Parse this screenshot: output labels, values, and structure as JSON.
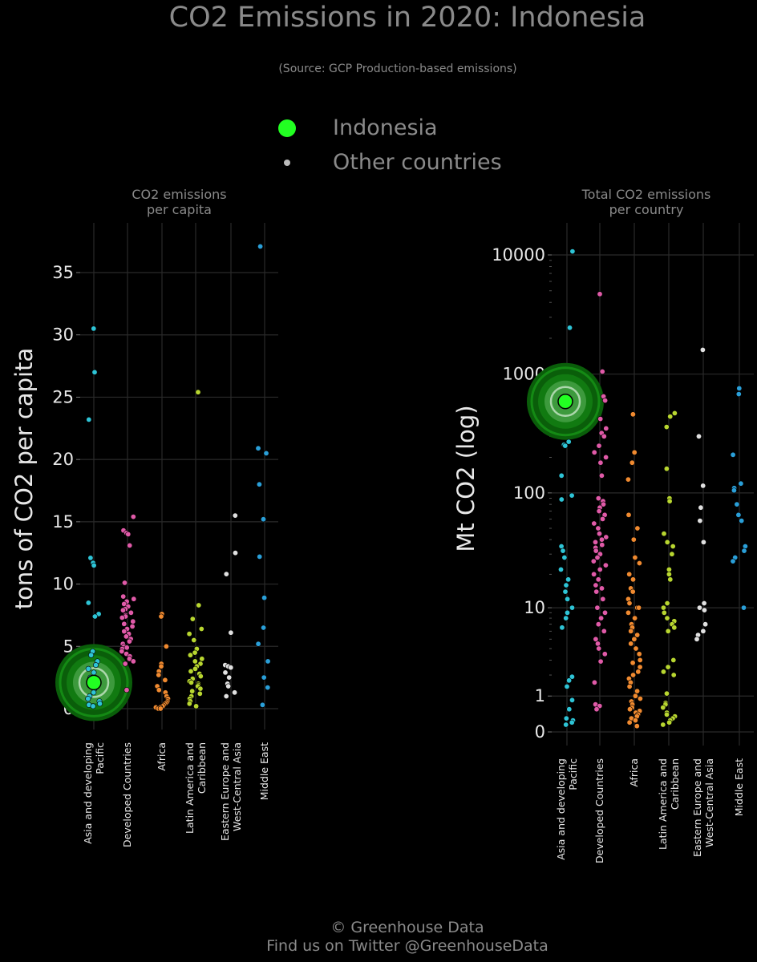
{
  "title": "CO2 Emissions in 2020: Indonesia",
  "subtitle": "(Source: GCP Production-based emissions)",
  "legend": {
    "highlight_label": "Indonesia",
    "others_label": "Other countries"
  },
  "footer": {
    "line1": "© Greenhouse Data",
    "line2": "Find us on Twitter @GreenhouseData"
  },
  "colors": {
    "background": "#000000",
    "highlight": "#22ff22",
    "Asia and developing Pacific": "#2ec4d6",
    "Developed Countries": "#e05aa8",
    "Africa": "#f08a30",
    "Latin America and Caribbean": "#b8d630",
    "Eastern Europe and West-Central Asia": "#e0e0e0",
    "Middle East": "#2a9fd8"
  },
  "chart_data": [
    {
      "type": "scatter",
      "title": "CO2 emissions\nper capita",
      "ylabel": "tons of CO2 per capita",
      "ylim": [
        -1.5,
        38.5
      ],
      "yticks": [
        0,
        5,
        10,
        15,
        20,
        25,
        30,
        35
      ],
      "ytick_labels": [
        "0",
        "5",
        "10",
        "15",
        "20",
        "25",
        "30",
        "35"
      ],
      "categories": [
        "Asia and developing\nPacific",
        "Developed Countries",
        "Africa",
        "Latin America and\nCaribbean",
        "Eastern Europe and\nWest-Central Asia",
        "Middle East"
      ],
      "highlight": {
        "name": "Indonesia",
        "category": 0,
        "value": 2.1
      },
      "series": [
        {
          "category": "Asia and developing Pacific",
          "values": [
            30.5,
            27.0,
            23.2,
            12.1,
            11.7,
            11.5,
            8.5,
            7.6,
            7.4,
            4.6,
            4.3,
            3.8,
            3.5,
            3.2,
            2.9,
            2.5,
            2.2,
            1.9,
            1.6,
            1.3,
            1.0,
            0.8,
            0.6,
            0.4,
            0.3,
            0.2
          ]
        },
        {
          "category": "Developed Countries",
          "values": [
            15.4,
            14.3,
            14.1,
            14.0,
            13.1,
            10.1,
            9.0,
            8.8,
            8.6,
            8.4,
            8.2,
            8.0,
            7.9,
            7.7,
            7.5,
            7.4,
            7.3,
            7.0,
            6.8,
            6.6,
            6.4,
            6.2,
            6.0,
            5.8,
            5.6,
            5.4,
            5.2,
            5.0,
            4.9,
            4.8,
            4.6,
            4.4,
            4.2,
            4.0,
            3.8,
            3.6,
            1.5
          ]
        },
        {
          "category": "Africa",
          "values": [
            7.6,
            7.4,
            5.0,
            3.6,
            3.4,
            3.0,
            2.7,
            2.3,
            1.8,
            1.5,
            1.3,
            1.0,
            0.8,
            0.6,
            0.5,
            0.4,
            0.3,
            0.2,
            0.1,
            0.1,
            0.1,
            0.0,
            0.0
          ]
        },
        {
          "category": "Latin America and Caribbean",
          "values": [
            25.4,
            8.3,
            7.2,
            6.4,
            6.0,
            5.5,
            4.8,
            4.5,
            4.3,
            4.0,
            3.8,
            3.6,
            3.4,
            3.2,
            3.0,
            2.8,
            2.6,
            2.4,
            2.2,
            2.1,
            2.0,
            1.9,
            1.8,
            1.6,
            1.4,
            1.2,
            1.0,
            0.8,
            0.6,
            0.4,
            0.2
          ]
        },
        {
          "category": "Eastern Europe and West-Central Asia",
          "values": [
            15.5,
            12.5,
            10.8,
            6.1,
            3.5,
            3.4,
            3.3,
            2.9,
            2.5,
            2.0,
            1.8,
            1.3,
            1.0
          ]
        },
        {
          "category": "Middle East",
          "values": [
            37.1,
            20.9,
            20.5,
            18.0,
            15.2,
            12.2,
            8.9,
            6.5,
            5.2,
            3.8,
            2.5,
            1.7,
            0.3
          ]
        }
      ]
    },
    {
      "type": "scatter",
      "title": "Total CO2 emissions\nper country",
      "ylabel": "Mt CO2 (log)",
      "yscale": "log",
      "ytick_values": [
        0,
        1,
        10,
        100,
        1000,
        10000
      ],
      "ytick_labels": [
        "0",
        "1",
        "10",
        "100",
        "1000",
        "10000"
      ],
      "categories": [
        "Asia and developing\nPacific",
        "Developed Countries",
        "Africa",
        "Latin America and\nCaribbean",
        "Eastern Europe and\nWest-Central Asia",
        "Middle East"
      ],
      "highlight": {
        "name": "Indonesia",
        "category": 0,
        "value": 590
      },
      "series": [
        {
          "category": "Asia and developing Pacific",
          "values": [
            10700,
            2450,
            270,
            255,
            250,
            140,
            95,
            88,
            35,
            32,
            28,
            22,
            18,
            16,
            14,
            12,
            10,
            9,
            8,
            6.5,
            1.9,
            1.7,
            1.4,
            0.85,
            0.55,
            0.3,
            0.25,
            0.2,
            0.15
          ]
        },
        {
          "category": "Developed Countries",
          "values": [
            4700,
            1050,
            650,
            600,
            420,
            350,
            320,
            300,
            250,
            220,
            200,
            180,
            140,
            90,
            85,
            80,
            75,
            70,
            65,
            60,
            55,
            50,
            45,
            42,
            40,
            38,
            36,
            34,
            32,
            30,
            28,
            26,
            24,
            22,
            20,
            18,
            16,
            15,
            14,
            12,
            10,
            9,
            8,
            7,
            6,
            5,
            4.5,
            4,
            3.5,
            2.9,
            1.6,
            0.7,
            0.65,
            0.55
          ]
        },
        {
          "category": "Africa",
          "values": [
            460,
            220,
            180,
            130,
            65,
            50,
            40,
            28,
            25,
            20,
            18,
            15,
            14,
            12,
            11,
            10,
            10,
            9,
            8,
            7,
            6.5,
            6,
            5.5,
            5,
            4.5,
            4,
            3.5,
            3,
            2.8,
            2.5,
            2.2,
            2,
            1.8,
            1.6,
            1.4,
            1.2,
            1.0,
            0.9,
            0.8,
            0.7,
            0.6,
            0.55,
            0.5,
            0.45,
            0.4,
            0.35,
            0.3,
            0.25,
            0.2,
            0.12
          ]
        },
        {
          "category": "Latin America and Caribbean",
          "values": [
            470,
            440,
            360,
            160,
            90,
            85,
            45,
            38,
            35,
            30,
            22,
            20,
            18,
            11,
            10,
            9,
            8,
            7.5,
            7,
            6.5,
            6,
            3,
            2.5,
            2.2,
            2,
            1.1,
            0.75,
            0.7,
            0.6,
            0.45,
            0.4,
            0.35,
            0.3,
            0.25,
            0.2,
            0.15
          ]
        },
        {
          "category": "Eastern Europe and West-Central Asia",
          "values": [
            1600,
            300,
            115,
            75,
            58,
            38,
            11,
            10,
            9.5,
            7,
            6,
            5.5,
            5
          ]
        },
        {
          "category": "Middle East",
          "values": [
            760,
            680,
            210,
            120,
            110,
            105,
            80,
            65,
            58,
            35,
            32,
            28,
            26,
            10
          ]
        }
      ]
    }
  ]
}
